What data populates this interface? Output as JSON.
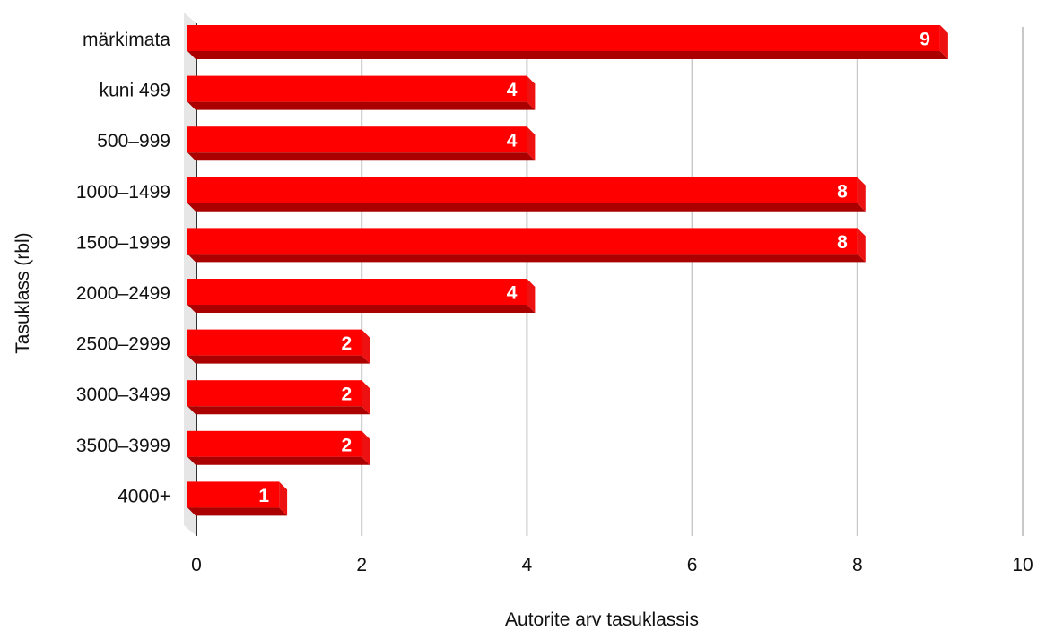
{
  "chart_data": {
    "type": "bar",
    "orientation": "horizontal",
    "categories": [
      "märkimata",
      "kuni 499",
      "500–999",
      "1000–1499",
      "1500–1999",
      "2000–2499",
      "2500–2999",
      "3000–3499",
      "3500–3999",
      "4000+"
    ],
    "values": [
      9,
      4,
      4,
      8,
      8,
      4,
      2,
      2,
      2,
      1
    ],
    "xlabel": "Autorite arv tasuklassis",
    "ylabel": "Tasuklass (rbl)",
    "xlim": [
      0,
      10
    ],
    "xticks": [
      0,
      2,
      4,
      6,
      8,
      10
    ],
    "grid": true,
    "data_labels": true,
    "style": "3d",
    "colors": {
      "bar_face": "#ff0000",
      "bar_side": "#ee1111",
      "bar_bottom": "#aa0000",
      "grid": "#c8c8c8",
      "back_wall": "#e6e6e6"
    }
  }
}
